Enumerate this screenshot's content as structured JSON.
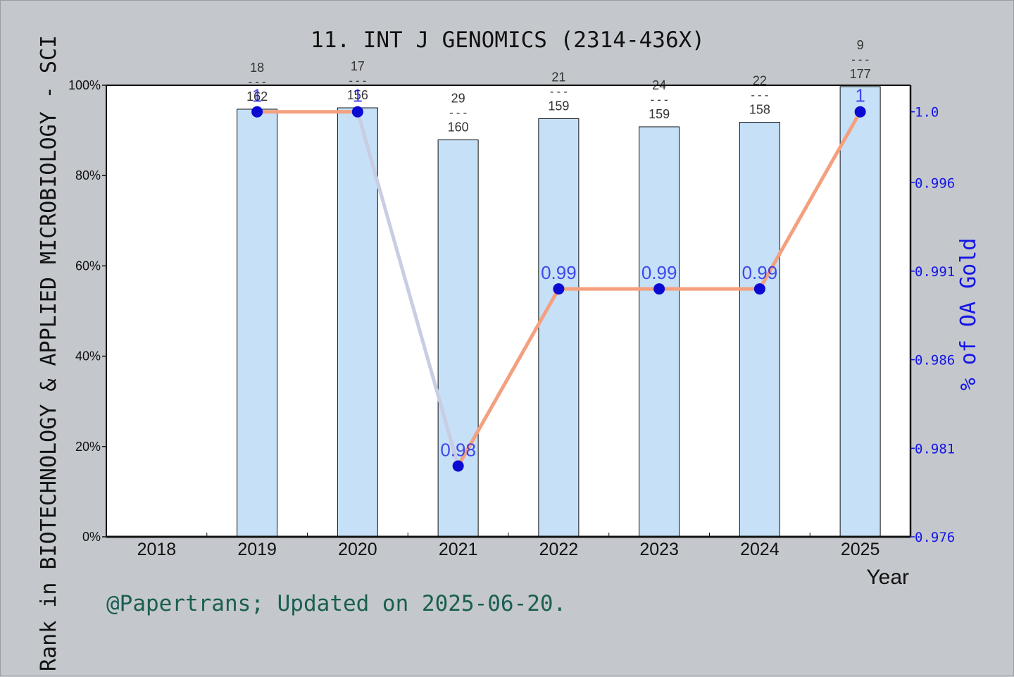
{
  "chart_data": {
    "type": "bar",
    "title": "11. INT J GENOMICS (2314-436X)",
    "xlabel": "Year",
    "ylabel": "Rank in BIOTECHNOLOGY & APPLIED MICROBIOLOGY - SCI",
    "y2label": "% of OA Gold",
    "footer": "@Papertrans; Updated on 2025-06-20.",
    "categories": [
      "2018",
      "2019",
      "2020",
      "2021",
      "2022",
      "2023",
      "2024",
      "2025"
    ],
    "ylim": [
      0,
      100
    ],
    "yticks": [
      "0%",
      "20%",
      "40%",
      "60%",
      "80%",
      "100%"
    ],
    "y2lim": [
      0.976,
      1.0015
    ],
    "y2ticks": [
      "0.976",
      "0.981",
      "0.986",
      "0.991",
      "0.996",
      "1.0"
    ],
    "series": [
      {
        "kind": "bar",
        "color": "#c5e0f7",
        "values": [
          null,
          94.7,
          95.0,
          87.9,
          92.6,
          90.8,
          91.8,
          99.7
        ],
        "labels": [
          null,
          {
            "rank": "18",
            "total": "162"
          },
          {
            "rank": "17",
            "total": "156"
          },
          {
            "rank": "29",
            "total": "160"
          },
          {
            "rank": "21",
            "total": "159"
          },
          {
            "rank": "24",
            "total": "159"
          },
          {
            "rank": "22",
            "total": "158"
          },
          {
            "rank": "9",
            "total": "177"
          }
        ]
      },
      {
        "kind": "line",
        "axis": "right",
        "values": [
          null,
          1.0,
          1.0,
          0.98,
          0.99,
          0.99,
          0.99,
          1.0
        ],
        "point_labels": [
          null,
          "1",
          "1",
          "0.98",
          "0.99",
          "0.99",
          "0.99",
          "1"
        ],
        "colors": {
          "line_up": "#f4a07e",
          "line_down": "#c9cde4",
          "marker": "#0a0ad2",
          "label": "#1414e6"
        }
      }
    ],
    "colors": {
      "background": "#c4c8cc",
      "plot": "#ffffff",
      "right_axis": "#1414e6",
      "footer": "#1a5e52"
    }
  }
}
